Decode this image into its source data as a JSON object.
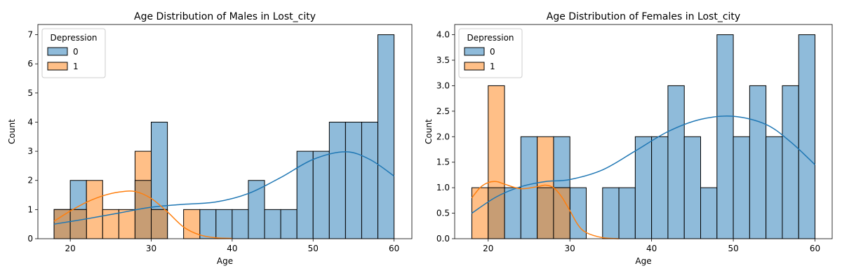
{
  "chart_data": [
    {
      "type": "histogram",
      "title": "Age Distribution of Males in Lost_city",
      "xlabel": "Age",
      "ylabel": "Count",
      "xlim": [
        16,
        62.2
      ],
      "ylim": [
        0,
        7.35
      ],
      "xticks": [
        20,
        30,
        40,
        50,
        60
      ],
      "yticks": [
        0,
        1,
        2,
        3,
        4,
        5,
        6,
        7
      ],
      "legend": {
        "title": "Depression",
        "position": "top-left"
      },
      "grid": false,
      "bins": [
        18,
        20,
        22,
        24,
        26,
        28,
        30,
        32,
        34,
        36,
        38,
        40,
        42,
        44,
        46,
        48,
        50,
        52,
        54,
        56,
        58,
        60
      ],
      "series": [
        {
          "name": "0",
          "color": "#1f77b4",
          "counts": [
            1,
            2,
            0,
            0,
            0,
            2,
            4,
            0,
            0,
            1,
            1,
            1,
            2,
            1,
            1,
            3,
            3,
            4,
            4,
            4,
            7
          ],
          "kde_x": [
            18,
            22,
            26,
            30,
            34,
            38,
            42,
            46,
            50,
            54,
            57,
            60
          ],
          "kde_y": [
            0.5,
            0.68,
            0.88,
            1.08,
            1.18,
            1.26,
            1.55,
            2.1,
            2.72,
            2.98,
            2.72,
            2.15
          ]
        },
        {
          "name": "1",
          "color": "#ff7f0e",
          "counts": [
            1,
            1,
            2,
            1,
            1,
            3,
            1,
            0,
            1,
            0,
            0,
            0,
            0,
            0,
            0,
            0,
            0,
            0,
            0,
            0,
            0
          ],
          "kde_x": [
            18,
            20,
            22,
            24,
            26,
            28,
            30,
            32,
            34,
            36,
            38,
            40
          ],
          "kde_y": [
            0.6,
            0.95,
            1.25,
            1.47,
            1.6,
            1.62,
            1.38,
            0.92,
            0.4,
            0.13,
            0.03,
            0.01
          ]
        }
      ]
    },
    {
      "type": "histogram",
      "title": "Age Distribution of Females in Lost_city",
      "xlabel": "Age",
      "ylabel": "Count",
      "xlim": [
        15.9,
        62.1
      ],
      "ylim": [
        0,
        4.2
      ],
      "xticks": [
        20,
        30,
        40,
        50,
        60
      ],
      "yticks": [
        0,
        0.5,
        1,
        1.5,
        2,
        2.5,
        3,
        3.5,
        4
      ],
      "yticklabels": [
        "0.0",
        "0.5",
        "1.0",
        "1.5",
        "2.0",
        "2.5",
        "3.0",
        "3.5",
        "4.0"
      ],
      "legend": {
        "title": "Depression",
        "position": "top-left"
      },
      "grid": false,
      "bins": [
        18,
        20,
        22,
        24,
        26,
        28,
        30,
        32,
        34,
        36,
        38,
        40,
        42,
        44,
        46,
        48,
        50,
        52,
        54,
        56,
        58,
        60
      ],
      "series": [
        {
          "name": "0",
          "color": "#1f77b4",
          "counts": [
            0,
            1,
            1,
            2,
            1,
            2,
            1,
            0,
            1,
            1,
            2,
            2,
            3,
            2,
            1,
            4,
            2,
            3,
            2,
            3,
            4
          ],
          "kde_x": [
            18,
            21,
            24,
            27,
            30,
            34,
            38,
            42,
            46,
            50,
            54,
            57,
            60
          ],
          "kde_y": [
            0.5,
            0.82,
            1.02,
            1.12,
            1.16,
            1.35,
            1.72,
            2.1,
            2.34,
            2.4,
            2.24,
            1.9,
            1.45
          ]
        },
        {
          "name": "1",
          "color": "#ff7f0e",
          "counts": [
            1,
            3,
            0,
            0,
            2,
            1,
            0,
            0,
            0,
            0,
            0,
            0,
            0,
            0,
            0,
            0,
            0,
            0,
            0,
            0,
            0
          ],
          "kde_x": [
            18,
            19,
            20,
            21,
            22,
            24,
            26,
            27,
            28,
            29,
            30,
            31,
            32,
            34,
            36
          ],
          "kde_y": [
            0.8,
            1.0,
            1.1,
            1.12,
            1.07,
            0.98,
            1.02,
            1.05,
            1.0,
            0.82,
            0.55,
            0.27,
            0.12,
            0.02,
            0.0
          ]
        }
      ]
    }
  ]
}
